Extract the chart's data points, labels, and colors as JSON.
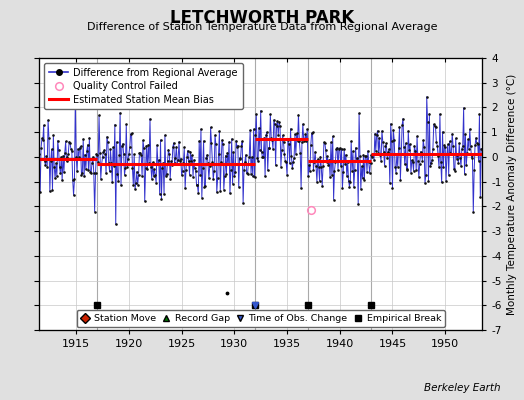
{
  "title": "LETCHWORTH PARK",
  "subtitle": "Difference of Station Temperature Data from Regional Average",
  "ylabel": "Monthly Temperature Anomaly Difference (°C)",
  "xlabel_years": [
    1915,
    1920,
    1925,
    1930,
    1935,
    1940,
    1945,
    1950
  ],
  "xlim": [
    1911.5,
    1953.5
  ],
  "ylim": [
    -7,
    4
  ],
  "yticks": [
    -7,
    -6,
    -5,
    -4,
    -3,
    -2,
    -1,
    0,
    1,
    2,
    3,
    4
  ],
  "background_color": "#e0e0e0",
  "plot_bg_color": "#ffffff",
  "grid_color": "#c8c8c8",
  "line_color": "#3333cc",
  "dot_color": "#111111",
  "bias_color": "#ff0000",
  "empirical_break_marker_y": -6.0,
  "empirical_break_years": [
    1917,
    1932,
    1937,
    1943
  ],
  "time_of_obs_change_years": [
    1932
  ],
  "qc_fail_x": 1937.3,
  "qc_fail_y": -2.15,
  "isolated_point_x": 1929.3,
  "isolated_point_y": -5.5,
  "segments": [
    {
      "start": 1911.5,
      "end": 1917.0,
      "bias": -0.08
    },
    {
      "start": 1917.0,
      "end": 1932.0,
      "bias": -0.28
    },
    {
      "start": 1932.0,
      "end": 1937.0,
      "bias": 0.72
    },
    {
      "start": 1937.0,
      "end": 1943.0,
      "bias": -0.18
    },
    {
      "start": 1943.0,
      "end": 1953.5,
      "bias": 0.12
    }
  ],
  "watermark": "Berkeley Earth",
  "random_seed": 17
}
